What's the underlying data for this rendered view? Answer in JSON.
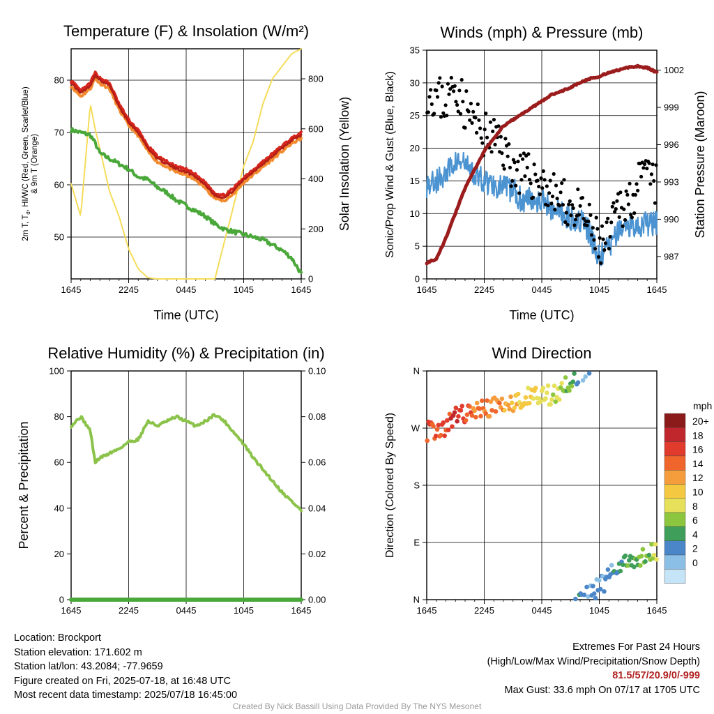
{
  "colors": {
    "temp": "#b51e17",
    "heatindex": "#d7261e",
    "dewpoint": "#4aa83a",
    "temp9m": "#f28a2e",
    "insolation": "#f5dc5a",
    "wind": "#4b93d1",
    "gust": "#000000",
    "pressure": "#9b1c1c",
    "rh": "#8bc34a",
    "precip": "#4aa83a"
  },
  "chart_data": [
    {
      "type": "line",
      "title": "Temperature (F) & Insolation (W/m²)",
      "xlabel": "Time (UTC)",
      "ylabel": "2m T, Td, HI/WC (Red, Green, Scarlet/Blue) & 9m T (Orange)",
      "ylabel_lines": [
        "2m T, T",
        "d",
        ", HI/WC (Red, Green, Scarlet/Blue)",
        "& 9m T (Orange)"
      ],
      "y2label": "Solar Insolation (Yellow)",
      "x_ticks": [
        "1645",
        "2245",
        "0445",
        "1045",
        "1645"
      ],
      "ylim": [
        42,
        86
      ],
      "y_ticks": [
        50,
        60,
        70,
        80
      ],
      "y2lim": [
        0,
        920
      ],
      "y2_ticks": [
        0,
        200,
        400,
        600,
        800
      ],
      "x": [
        0,
        1,
        2,
        2.5,
        3,
        4,
        5,
        6,
        7,
        8,
        9,
        10,
        11,
        12,
        13,
        14,
        15,
        16,
        17,
        18,
        19,
        20,
        21,
        22,
        23,
        24
      ],
      "series": [
        {
          "name": "2m T",
          "axis": "left",
          "values": [
            79.5,
            77.5,
            79,
            81,
            80,
            79,
            75,
            72,
            70,
            67,
            65,
            64,
            63,
            62.5,
            61.5,
            60,
            58,
            57.5,
            59,
            61,
            62.5,
            64,
            65.5,
            67,
            68.5,
            69.5
          ]
        },
        {
          "name": "2m Td",
          "axis": "left",
          "values": [
            70.5,
            70,
            69.5,
            68,
            66,
            65,
            64,
            63,
            61.5,
            61,
            59.5,
            58.5,
            57,
            56,
            55,
            54,
            52.5,
            51.5,
            51,
            50.5,
            50,
            49.5,
            48.5,
            47.5,
            46,
            43
          ]
        },
        {
          "name": "Solar Insolation",
          "axis": "right",
          "values": [
            380,
            250,
            700,
            600,
            520,
            350,
            250,
            120,
            40,
            5,
            0,
            0,
            0,
            0,
            0,
            0,
            0,
            150,
            300,
            450,
            550,
            700,
            800,
            850,
            900,
            920
          ]
        }
      ]
    },
    {
      "type": "scatter",
      "title": "Winds (mph) & Pressure (mb)",
      "xlabel": "Time (UTC)",
      "ylabel": "Sonic/Prop Wind & Gust (Blue, Black)",
      "y2label": "Station Pressure (Maroon)",
      "x_ticks": [
        "1645",
        "2245",
        "0445",
        "1045",
        "1645"
      ],
      "ylim": [
        0,
        35
      ],
      "y_ticks": [
        0,
        5,
        10,
        15,
        20,
        25,
        30,
        35
      ],
      "y2lim": [
        985.2,
        1003.6
      ],
      "y2_ticks": [
        987,
        990,
        993,
        996,
        999,
        1002
      ],
      "x": [
        0,
        1,
        2,
        3,
        4,
        5,
        6,
        7,
        8,
        9,
        10,
        11,
        12,
        13,
        14,
        15,
        16,
        17,
        18,
        19,
        20,
        21,
        22,
        23,
        24
      ],
      "series": [
        {
          "name": "Sonic/Prop Wind",
          "axis": "left",
          "values": [
            14.5,
            15,
            16,
            18,
            17.5,
            16,
            15,
            14.5,
            14,
            13.5,
            12,
            12.5,
            12,
            11,
            10,
            9.5,
            9,
            7,
            3,
            5,
            7,
            8.5,
            8,
            8.5,
            8.5
          ]
        },
        {
          "name": "Gust",
          "axis": "left",
          "values": [
            29,
            28,
            27,
            30,
            26,
            24,
            22,
            21.5,
            20,
            17,
            16,
            15.5,
            15,
            13,
            12,
            11,
            10,
            8,
            5,
            6,
            11,
            12,
            14,
            16,
            14
          ]
        },
        {
          "name": "Station Pressure",
          "axis": "right",
          "values": [
            986.5,
            986.8,
            988.5,
            990.5,
            992.5,
            994,
            995.5,
            996.5,
            997.5,
            998,
            998.5,
            999,
            999.5,
            1000,
            1000.3,
            1000.6,
            1001,
            1001.3,
            1001.5,
            1001.8,
            1002,
            1002.2,
            1002.3,
            1002.2,
            1001.8
          ]
        }
      ]
    },
    {
      "type": "line",
      "title": "Relative Humidity (%) & Precipitation (in)",
      "ylabel": "Percent & Precipitation",
      "x_ticks": [
        "1645",
        "2245",
        "0445",
        "1045",
        "1645"
      ],
      "ylim": [
        0,
        100
      ],
      "y_ticks": [
        0,
        20,
        40,
        60,
        80,
        100
      ],
      "y2lim": [
        0,
        0.1
      ],
      "y2_ticks": [
        "0.00",
        "0.02",
        "0.04",
        "0.06",
        "0.08",
        "0.10"
      ],
      "x": [
        0,
        1,
        2,
        2.5,
        3,
        4,
        5,
        6,
        7,
        8,
        9,
        10,
        11,
        12,
        13,
        14,
        15,
        16,
        17,
        18,
        19,
        20,
        21,
        22,
        23,
        24
      ],
      "series": [
        {
          "name": "Relative Humidity",
          "axis": "left",
          "values": [
            76,
            80,
            74,
            60,
            62,
            64,
            66,
            69,
            70,
            78,
            76,
            78,
            80,
            78,
            76,
            78,
            81,
            78,
            73,
            68,
            62,
            57,
            52,
            47,
            43,
            39
          ]
        },
        {
          "name": "Precipitation",
          "axis": "right",
          "values": [
            0,
            0,
            0,
            0,
            0,
            0,
            0,
            0,
            0,
            0,
            0,
            0,
            0,
            0,
            0,
            0,
            0,
            0,
            0,
            0,
            0,
            0,
            0,
            0,
            0,
            0
          ]
        }
      ]
    },
    {
      "type": "scatter",
      "title": "Wind Direction",
      "ylabel": "Direction (Colored By Speed)",
      "x_ticks": [
        "1645",
        "2245",
        "0445",
        "1045",
        "1645"
      ],
      "y_ticks": [
        "N",
        "E",
        "S",
        "W",
        "N"
      ],
      "ylim": [
        0,
        360
      ],
      "legend_title": "mph",
      "legend_labels": [
        "20+",
        "18",
        "16",
        "14",
        "12",
        "10",
        "8",
        "6",
        "4",
        "2",
        "0"
      ],
      "legend_colors": [
        "#8b1a1a",
        "#c0272d",
        "#e03b2c",
        "#f0652b",
        "#f59c3d",
        "#f5c842",
        "#e6e05a",
        "#8cc63f",
        "#3f9e5a",
        "#4a86c8",
        "#8cbfe6",
        "#c6e4f7"
      ],
      "x": [
        0,
        1,
        2,
        3,
        4,
        5,
        6,
        7,
        8,
        9,
        10,
        11,
        12,
        13,
        14,
        15,
        16,
        17,
        18,
        19,
        20,
        21,
        22,
        23,
        24
      ],
      "series": [
        {
          "name": "Direction",
          "values": [
            265,
            267,
            272,
            290,
            292,
            295,
            300,
            305,
            310,
            310,
            318,
            320,
            322,
            322,
            330,
            340,
            355,
            10,
            20,
            35,
            50,
            60,
            65,
            70,
            75
          ]
        },
        {
          "name": "Speed",
          "values": [
            16,
            17,
            17,
            19,
            17,
            16,
            16,
            15,
            14,
            13,
            12,
            11,
            10,
            9,
            8,
            7,
            5,
            2,
            3,
            4,
            5,
            6,
            7,
            8,
            9
          ]
        }
      ]
    }
  ],
  "info": {
    "location": "Location: Brockport",
    "elevation": "Station elevation: 171.602 m",
    "latlon": "Station lat/lon: 43.2084; -77.9659",
    "created": "Figure created on Fri, 2025-07-18, at 16:48 UTC",
    "recent": "Most recent data timestamp: 2025/07/18 16:45:00"
  },
  "extremes": {
    "heading": "Extremes For Past 24 Hours",
    "subheading": "(High/Low/Max Wind/Precipitation/Snow Depth)",
    "values": "81.5/57/20.9/0/-999",
    "gust": "Max Gust: 33.6 mph On 07/17 at 1705 UTC"
  },
  "credit": "Created By Nick Bassill Using Data Provided By The NYS Mesonet"
}
